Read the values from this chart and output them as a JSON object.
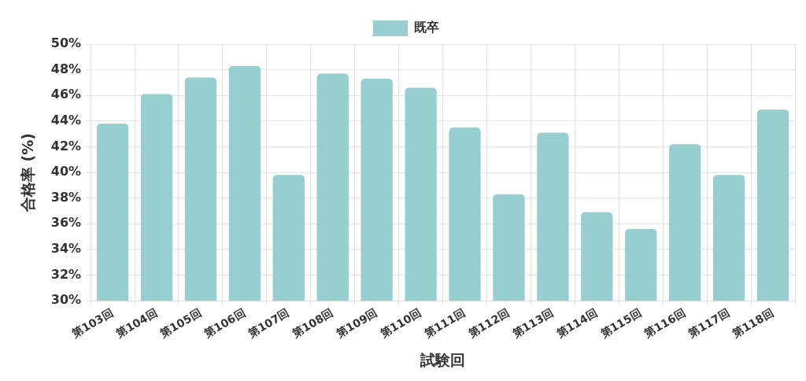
{
  "chart_data": {
    "type": "bar",
    "categories": [
      "第103回",
      "第104回",
      "第105回",
      "第106回",
      "第107回",
      "第108回",
      "第109回",
      "第110回",
      "第111回",
      "第112回",
      "第113回",
      "第114回",
      "第115回",
      "第116回",
      "第117回",
      "第118回"
    ],
    "series": [
      {
        "name": "既卒",
        "color": "#97cecf",
        "values": [
          43.8,
          46.1,
          47.4,
          48.3,
          39.8,
          47.7,
          47.3,
          46.6,
          43.5,
          38.3,
          43.1,
          36.9,
          35.6,
          42.2,
          39.8,
          44.9
        ]
      }
    ],
    "xlabel": "試験回",
    "ylabel": "合格率 (%)",
    "ylim": [
      30,
      50
    ],
    "yticks": [
      {
        "value": 30,
        "label": "30%"
      },
      {
        "value": 32,
        "label": "32%"
      },
      {
        "value": 34,
        "label": "34%"
      },
      {
        "value": 36,
        "label": "36%"
      },
      {
        "value": 38,
        "label": "38%"
      },
      {
        "value": 40,
        "label": "40%"
      },
      {
        "value": 42,
        "label": "42%"
      },
      {
        "value": 44,
        "label": "44%"
      },
      {
        "value": 46,
        "label": "46%"
      },
      {
        "value": 48,
        "label": "48%"
      },
      {
        "value": 50,
        "label": "50%"
      }
    ],
    "grid": true,
    "legend": "top"
  }
}
